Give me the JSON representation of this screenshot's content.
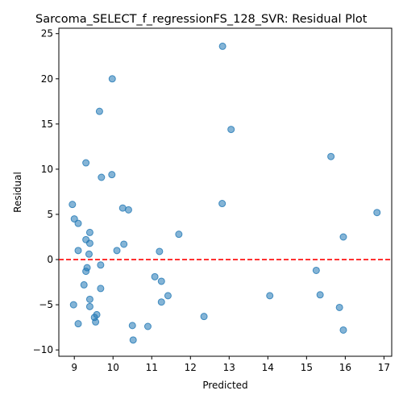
{
  "chart_data": {
    "type": "scatter",
    "title": "Sarcoma_SELECT_f_regressionFS_128_SVR: Residual Plot",
    "xlabel": "Predicted",
    "ylabel": "Residual",
    "xlim": [
      8.6,
      17.2
    ],
    "ylim": [
      -10.7,
      25.6
    ],
    "xticks": [
      9,
      10,
      11,
      12,
      13,
      14,
      15,
      16,
      17
    ],
    "yticks": [
      -10,
      -5,
      0,
      5,
      10,
      15,
      20,
      25
    ],
    "reference_line": {
      "y": 0,
      "style": "dashed",
      "color": "#ff0000"
    },
    "grid": false,
    "point_color": "#1f77b4",
    "points": [
      {
        "x": 8.95,
        "y": 6.1
      },
      {
        "x": 9.0,
        "y": 4.5
      },
      {
        "x": 9.1,
        "y": 4.0
      },
      {
        "x": 9.1,
        "y": 1.0
      },
      {
        "x": 8.98,
        "y": -5.0
      },
      {
        "x": 9.1,
        "y": -7.1
      },
      {
        "x": 9.25,
        "y": -2.8
      },
      {
        "x": 9.3,
        "y": 10.7
      },
      {
        "x": 9.3,
        "y": 2.2
      },
      {
        "x": 9.3,
        "y": -1.3
      },
      {
        "x": 9.33,
        "y": -0.9
      },
      {
        "x": 9.4,
        "y": 3.0
      },
      {
        "x": 9.4,
        "y": 1.8
      },
      {
        "x": 9.38,
        "y": 0.6
      },
      {
        "x": 9.4,
        "y": -4.4
      },
      {
        "x": 9.4,
        "y": -5.2
      },
      {
        "x": 9.52,
        "y": -6.4
      },
      {
        "x": 9.58,
        "y": -6.1
      },
      {
        "x": 9.55,
        "y": -6.9
      },
      {
        "x": 9.65,
        "y": 16.4
      },
      {
        "x": 9.7,
        "y": 9.1
      },
      {
        "x": 9.68,
        "y": -0.6
      },
      {
        "x": 9.68,
        "y": -3.2
      },
      {
        "x": 9.98,
        "y": 20.0
      },
      {
        "x": 9.97,
        "y": 9.4
      },
      {
        "x": 10.1,
        "y": 1.0
      },
      {
        "x": 10.25,
        "y": 5.7
      },
      {
        "x": 10.28,
        "y": 1.7
      },
      {
        "x": 10.4,
        "y": 5.5
      },
      {
        "x": 10.5,
        "y": -7.3
      },
      {
        "x": 10.52,
        "y": -8.9
      },
      {
        "x": 10.9,
        "y": -7.4
      },
      {
        "x": 11.08,
        "y": -1.9
      },
      {
        "x": 11.2,
        "y": 0.9
      },
      {
        "x": 11.25,
        "y": -2.4
      },
      {
        "x": 11.25,
        "y": -4.7
      },
      {
        "x": 11.42,
        "y": -4.0
      },
      {
        "x": 11.7,
        "y": 2.8
      },
      {
        "x": 12.35,
        "y": -6.3
      },
      {
        "x": 12.83,
        "y": 23.6
      },
      {
        "x": 12.82,
        "y": 6.2
      },
      {
        "x": 13.05,
        "y": 14.4
      },
      {
        "x": 14.05,
        "y": -4.0
      },
      {
        "x": 15.25,
        "y": -1.2
      },
      {
        "x": 15.35,
        "y": -3.9
      },
      {
        "x": 15.63,
        "y": 11.4
      },
      {
        "x": 15.85,
        "y": -5.3
      },
      {
        "x": 15.95,
        "y": 2.5
      },
      {
        "x": 15.95,
        "y": -7.8
      },
      {
        "x": 16.82,
        "y": 5.2
      }
    ]
  }
}
